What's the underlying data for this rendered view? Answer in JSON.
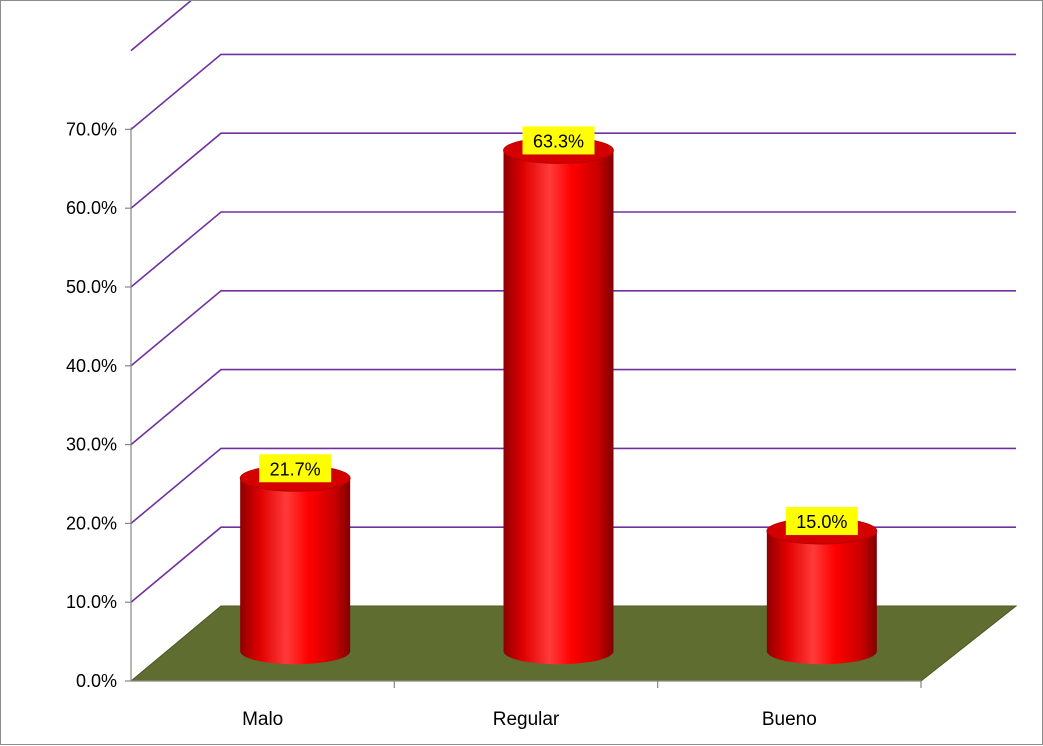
{
  "chart_data": {
    "type": "bar",
    "style": "3d-cylinder",
    "categories": [
      "Malo",
      "Regular",
      "Bueno"
    ],
    "values": [
      21.7,
      63.3,
      15.0
    ],
    "data_labels": [
      "21.7%",
      "63.3%",
      "15.0%"
    ],
    "y_ticks": [
      "0.0%",
      "10.0%",
      "20.0%",
      "30.0%",
      "40.0%",
      "50.0%",
      "60.0%",
      "70.0%"
    ],
    "ylim": [
      0,
      80
    ],
    "title": "",
    "xlabel": "",
    "ylabel": "",
    "grid": true,
    "legend": "none",
    "colors": {
      "bar": "#ff0000",
      "bar_dark": "#a50000",
      "bar_top": "#d40000",
      "floor": "#5f6e30",
      "gridline": "#7030a0",
      "axis": "#868686",
      "label_bg": "#ffff00"
    }
  }
}
